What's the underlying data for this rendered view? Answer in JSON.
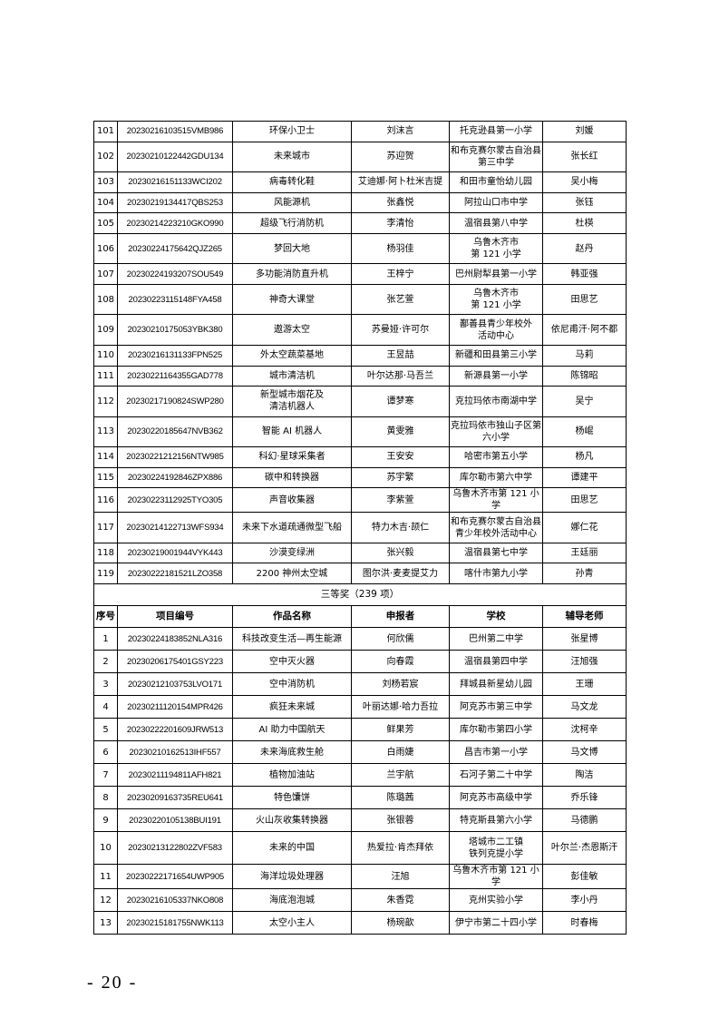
{
  "upper_rows": [
    [
      "101",
      "20230216103515VMB986",
      "环保小卫士",
      "刘沫言",
      "托克逊县第一小学",
      "刘媛"
    ],
    [
      "102",
      "20230210122442GDU134",
      "未来城市",
      "苏迎贺",
      "和布克赛尔蒙古自治县\n第三中学",
      "张长红"
    ],
    [
      "103",
      "20230216151133WCI202",
      "病毒转化鞋",
      "艾迪娜·阿卜杜米吉提",
      "和田市童怡幼儿园",
      "吴小梅"
    ],
    [
      "104",
      "20230219134417QBS253",
      "风能源机",
      "张鑫悦",
      "阿拉山口市中学",
      "张钰"
    ],
    [
      "105",
      "20230214223210GKO990",
      "超级飞行消防机",
      "李清怡",
      "温宿县第八中学",
      "杜楧"
    ],
    [
      "106",
      "20230224175642QJZ265",
      "梦回大地",
      "杨羽佳",
      "乌鲁木齐市\n第 121 小学",
      "赵丹"
    ],
    [
      "107",
      "20230224193207SOU549",
      "多功能消防直升机",
      "王梓宁",
      "巴州尉犁县第一小学",
      "韩亚强"
    ],
    [
      "108",
      "20230223115148FYA458",
      "神奇大课堂",
      "张艺萱",
      "乌鲁木齐市\n第 121 小学",
      "田思艺"
    ],
    [
      "109",
      "20230210175053YBK380",
      "遨游太空",
      "苏曼娅·许可尔",
      "鄯善县青少年校外\n活动中心",
      "依尼甫汗·阿不都"
    ],
    [
      "110",
      "20230216131133FPN525",
      "外太空蔬菜基地",
      "王昱喆",
      "新疆和田县第三小学",
      "马莉"
    ],
    [
      "111",
      "20230221164355GAD778",
      "城市清洁机",
      "叶尔达那·马吾兰",
      "新源县第一小学",
      "陈锦昭"
    ],
    [
      "112",
      "20230217190824SWP280",
      "新型城市烟花及\n清洁机器人",
      "谭梦寒",
      "克拉玛依市南湖中学",
      "吴宁"
    ],
    [
      "113",
      "20230220185647NVB362",
      "智能 AI 机器人",
      "黄雯雅",
      "克拉玛依市独山子区第\n六小学",
      "杨崐"
    ],
    [
      "114",
      "20230221212156NTW985",
      "科幻·星球采集者",
      "王安安",
      "哈密市第五小学",
      "杨凡"
    ],
    [
      "115",
      "20230224192846ZPX886",
      "碳中和转换器",
      "苏宇繁",
      "库尔勒市第六中学",
      "谭建平"
    ],
    [
      "116",
      "20230223112925TYO305",
      "声音收集器",
      "李紫萱",
      "乌鲁木齐市第 121 小学",
      "田思艺"
    ],
    [
      "117",
      "20230214122713WFS934",
      "未来下水道疏通微型飞船",
      "特力木吉·颉仁",
      "和布克赛尔蒙古自治县\n青少年校外活动中心",
      "娜仁花"
    ],
    [
      "118",
      "20230219001944VYK443",
      "沙漠变绿洲",
      "张兴毅",
      "温宿县第七中学",
      "王廷丽"
    ],
    [
      "119",
      "20230222181521LZO358",
      "2200 神州太空城",
      "图尔洪·麦麦提艾力",
      "喀什市第九小学",
      "孙青"
    ]
  ],
  "section_title": "三等奖（239 项）",
  "headers": [
    "序号",
    "项目编号",
    "作品名称",
    "申报者",
    "学校",
    "辅导老师"
  ],
  "lower_rows": [
    [
      "1",
      "20230224183852NLA316",
      "科技改变生活—再生能源",
      "何欣儒",
      "巴州第二中学",
      "张星博"
    ],
    [
      "2",
      "20230206175401GSY223",
      "空中灭火器",
      "向春霞",
      "温宿县第四中学",
      "汪旭强"
    ],
    [
      "3",
      "20230212103753LVO171",
      "空中消防机",
      "刘杨若宸",
      "拜城县新星幼儿园",
      "王珊"
    ],
    [
      "4",
      "20230211120154MPR426",
      "疯狂未来城",
      "叶丽达娜·哈力吾拉",
      "阿克苏市第三中学",
      "马文龙"
    ],
    [
      "5",
      "20230222201609JRW513",
      "AI 助力中国航天",
      "鲜果芳",
      "库尔勒市第四小学",
      "沈柯辛"
    ],
    [
      "6",
      "20230210162513IHF557",
      "未来海底救生舱",
      "白雨婕",
      "昌吉市第一小学",
      "马文博"
    ],
    [
      "7",
      "20230211194811AFH821",
      "植物加油站",
      "兰宇航",
      "石河子第二十中学",
      "陶洁"
    ],
    [
      "8",
      "20230209163735REU641",
      "特色馕饼",
      "陈璐茜",
      "阿克苏市高级中学",
      "乔乐锋"
    ],
    [
      "9",
      "20230220105138BUI191",
      "火山灰收集转换器",
      "张银蓉",
      "特克斯县第六小学",
      "马德鹏"
    ],
    [
      "10",
      "20230213122802ZVF583",
      "未来的中国",
      "热爱拉·肯杰拜依",
      "塔城市二工镇\n铁列克提小学",
      "叶尔兰·杰恩斯汗"
    ],
    [
      "11",
      "20230222171654UWP905",
      "海洋垃圾处理器",
      "汪旭",
      "乌鲁木齐市第 121 小学",
      "彭佳敏"
    ],
    [
      "12",
      "20230216105337NKO808",
      "海底泡泡城",
      "朱香霓",
      "克州实验小学",
      "李小丹"
    ],
    [
      "13",
      "20230215181755NWK113",
      "太空小主人",
      "杨琬歆",
      "伊宁市第二十四小学",
      "时春梅"
    ]
  ],
  "page_number": "- 20 -"
}
